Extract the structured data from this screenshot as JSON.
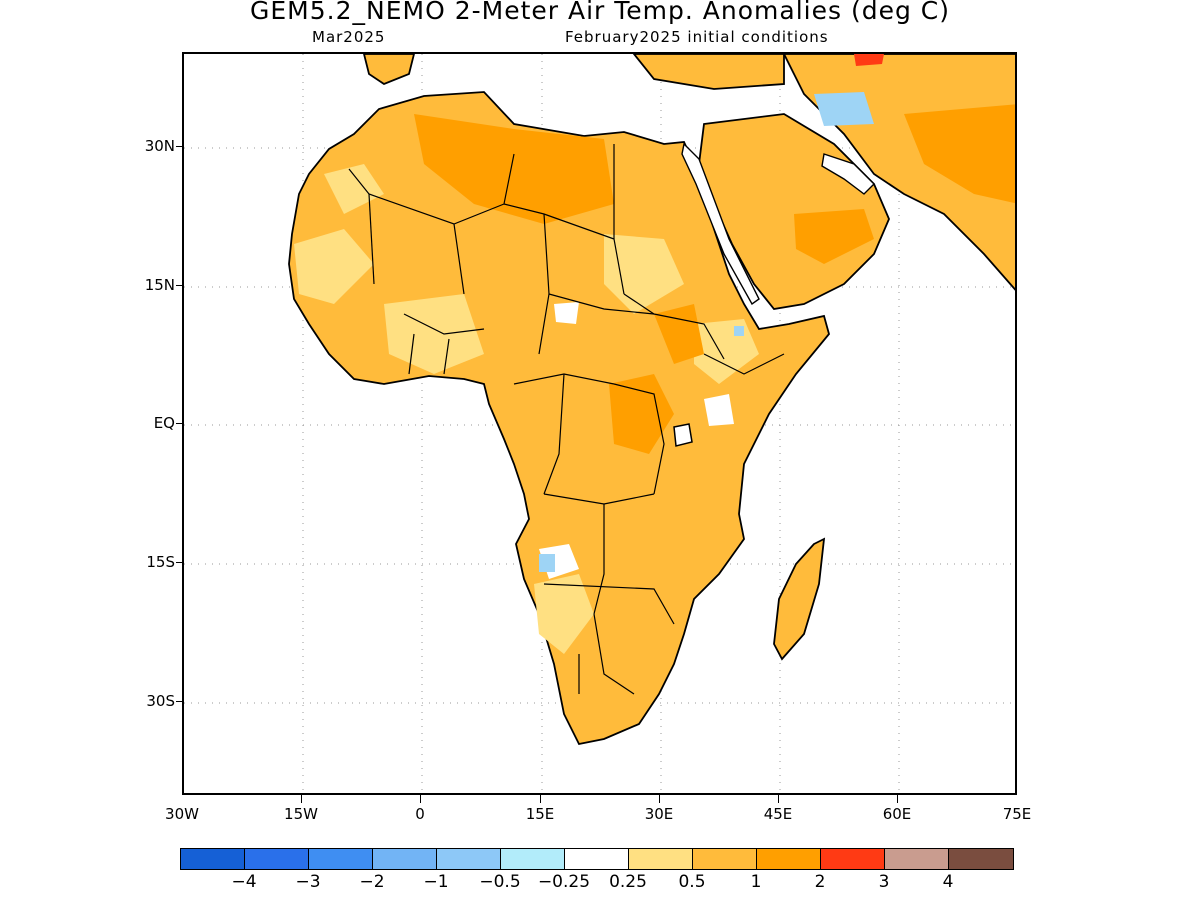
{
  "header": {
    "title": "GEM5.2_NEMO 2-Meter Air Temp. Anomalies (deg C)",
    "subtitle_left": "Mar2025",
    "subtitle_right": "February2025 initial conditions"
  },
  "map": {
    "lat_range": [
      -37,
      40
    ],
    "lon_range": [
      -30,
      75
    ],
    "lat_labels": [
      "30N",
      "15N",
      "EQ",
      "15S",
      "30S"
    ],
    "lon_labels": [
      "30W",
      "15W",
      "0",
      "15E",
      "30E",
      "45E",
      "60E",
      "75E"
    ],
    "gridlines": "dotted",
    "region": "Africa and Middle East",
    "dominant_anomaly": "0.5 to 2 deg C warm anomalies over most of Africa and the Arabian Peninsula",
    "colors": {
      "land_warm_light": "#ffe082",
      "land_warm_mid": "#ffbb3b",
      "land_warm_strong": "#ff9f00",
      "hot_spot": "#ff3a14",
      "cool_spot": "#9ed4f5",
      "ocean": "#ffffff",
      "coast": "#000000"
    }
  },
  "colorbar": {
    "colors": [
      "#1560d6",
      "#2a70ea",
      "#3f8ef2",
      "#72b4f5",
      "#8dc8f7",
      "#b2ecfa",
      "#ffffff",
      "#ffe082",
      "#ffbb3b",
      "#ff9f00",
      "#ff3a14",
      "#c99c8f",
      "#7a4d3f"
    ],
    "labels": [
      "−4",
      "−3",
      "−2",
      "−1",
      "−0.5",
      "−0.25",
      "0.25",
      "0.5",
      "1",
      "2",
      "3",
      "4"
    ]
  }
}
